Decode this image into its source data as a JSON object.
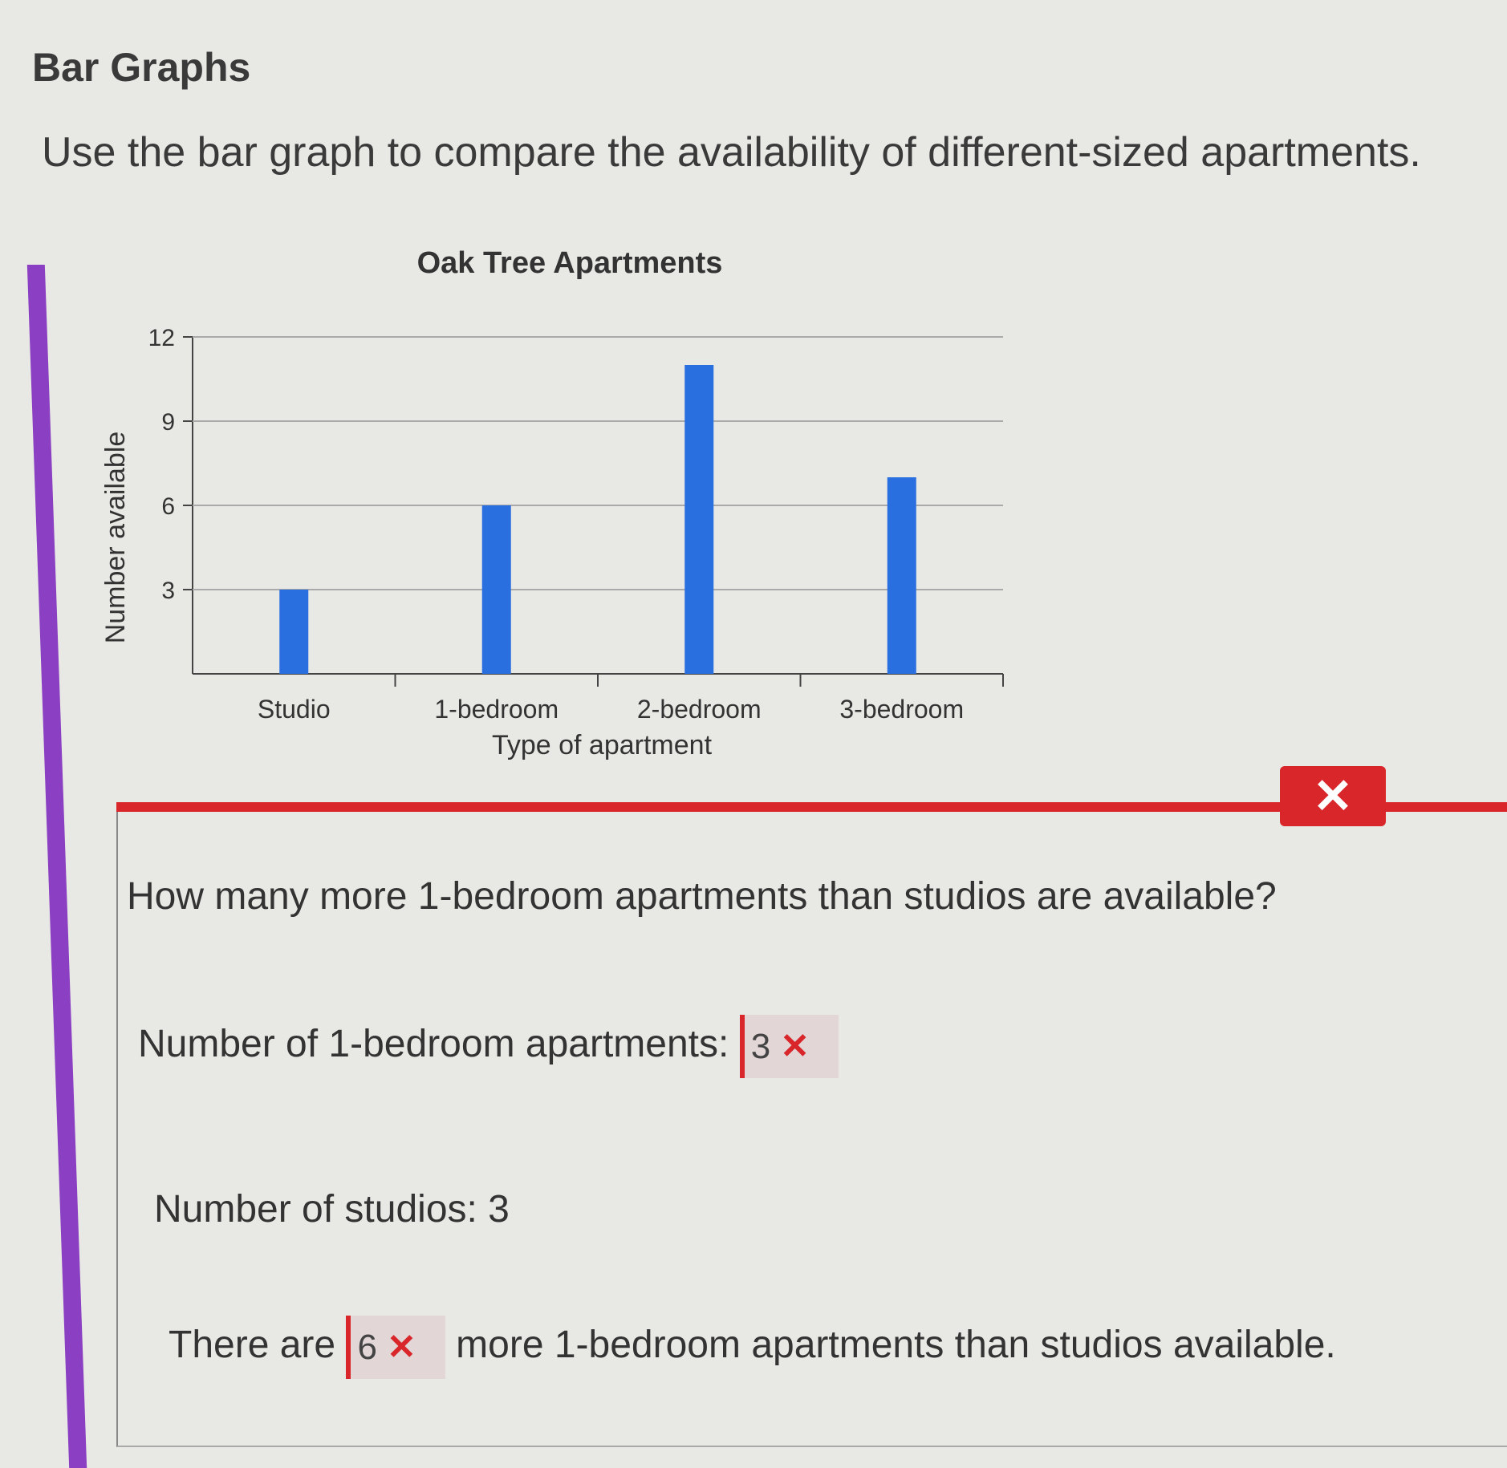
{
  "page": {
    "title": "Bar Graphs",
    "instruction": "Use the bar graph to compare the availability of different-sized apartments."
  },
  "chart_data": {
    "type": "bar",
    "title": "Oak Tree Apartments",
    "xlabel": "Type of apartment",
    "ylabel": "Number available",
    "categories": [
      "Studio",
      "1-bedroom",
      "2-bedroom",
      "3-bedroom"
    ],
    "values": [
      3,
      6,
      11,
      7
    ],
    "yticks": [
      "3",
      "6",
      "9",
      "12"
    ],
    "ylim": [
      0,
      12
    ],
    "grid": true,
    "bar_color": "#2a6fe0"
  },
  "feedback": {
    "status": "incorrect",
    "close_icon": "x-icon",
    "color": "#d9262a"
  },
  "question": {
    "prompt": "How many more 1-bedroom apartments than studios are available?",
    "line1_label": "Number of 1-bedroom apartments:",
    "line1_value": "3",
    "line2_text": "Number of studios: 3",
    "line3_prefix": "There are",
    "line3_value": "6",
    "line3_suffix": "more 1-bedroom apartments than studios available.",
    "wrong_mark": "✕"
  }
}
